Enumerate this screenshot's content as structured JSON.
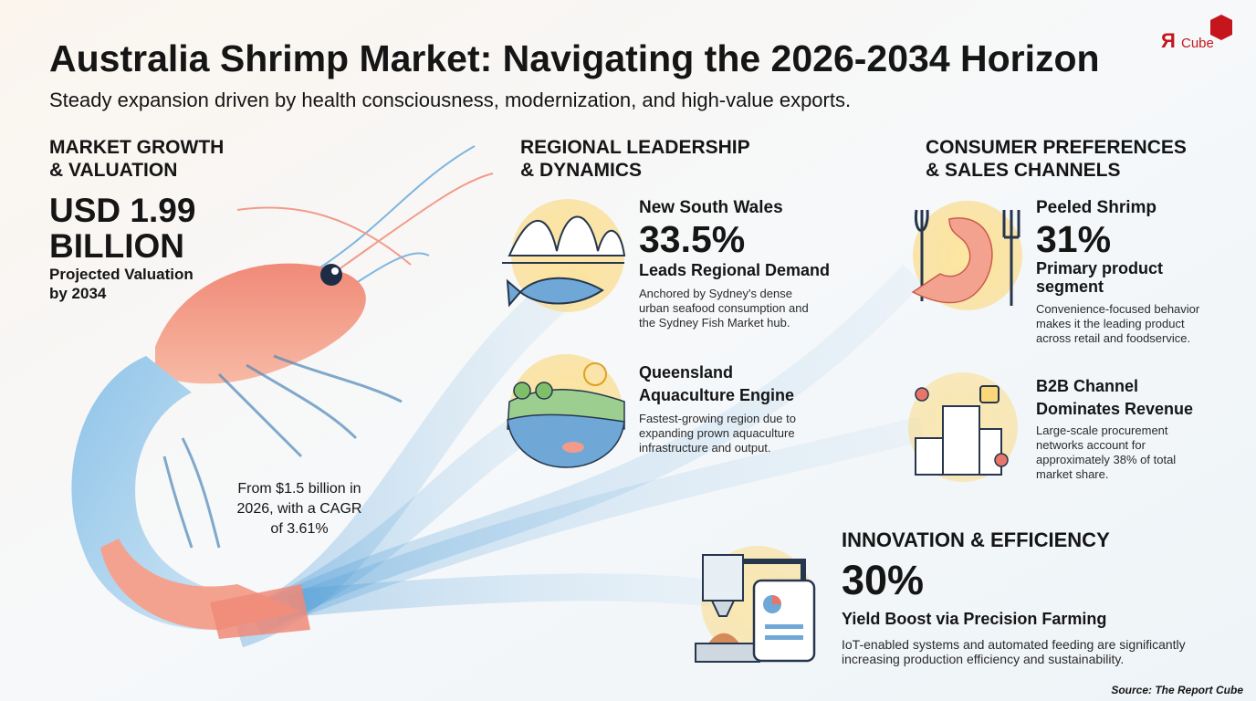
{
  "logo": {
    "mark": "Я",
    "text": "Cube"
  },
  "header": {
    "title": "Australia Shrimp Market: Navigating the 2026-2034 Horizon",
    "subtitle": "Steady expansion driven by health consciousness, modernization, and high-value exports."
  },
  "market": {
    "heading": [
      "MARKET GROWTH",
      "& VALUATION"
    ],
    "value": [
      "USD 1.99",
      "BILLION"
    ],
    "label": [
      "Projected Valuation",
      "by 2034"
    ],
    "note": [
      "From $1.5 billion in",
      "2026, with a CAGR",
      "of 3.61%"
    ]
  },
  "regional": {
    "heading": [
      "REGIONAL LEADERSHIP",
      "& DYNAMICS"
    ],
    "items": [
      {
        "name": [
          "New South Wales"
        ],
        "value": "33.5%",
        "label": [
          "Leads Regional Demand"
        ],
        "text": [
          "Anchored by Sydney's dense",
          "urban seafood consumption and",
          "the Sydney Fish Market hub."
        ]
      },
      {
        "name": [
          "Queensland",
          "Aquaculture Engine"
        ],
        "text": [
          "Fastest-growing region due to",
          "expanding prown aquaculture",
          "infrastructure and output."
        ]
      }
    ]
  },
  "consumer": {
    "heading": [
      "CONSUMER PREFERENCES",
      "& SALES CHANNELS"
    ],
    "items": [
      {
        "name": [
          "Peeled Shrimp"
        ],
        "value": "31%",
        "label": [
          "Primary product",
          "segment"
        ],
        "text": [
          "Convenience-focused behavior",
          "makes it the leading product",
          "across retail and foodservice."
        ]
      },
      {
        "name": [
          "B2B Channel",
          "Dominates Revenue"
        ],
        "text": [
          "Large-scale procurement",
          "networks account for",
          "approximately 38% of total",
          "market share."
        ]
      }
    ]
  },
  "innovation": {
    "heading": "INNOVATION & EFFICIENCY",
    "value": "30%",
    "label": "Yield Boost via Precision Farming",
    "text": [
      "IoT-enabled systems and automated feeding are significantly",
      "increasing production efficiency and sustainability."
    ]
  },
  "source": "Source: The Report Cube"
}
